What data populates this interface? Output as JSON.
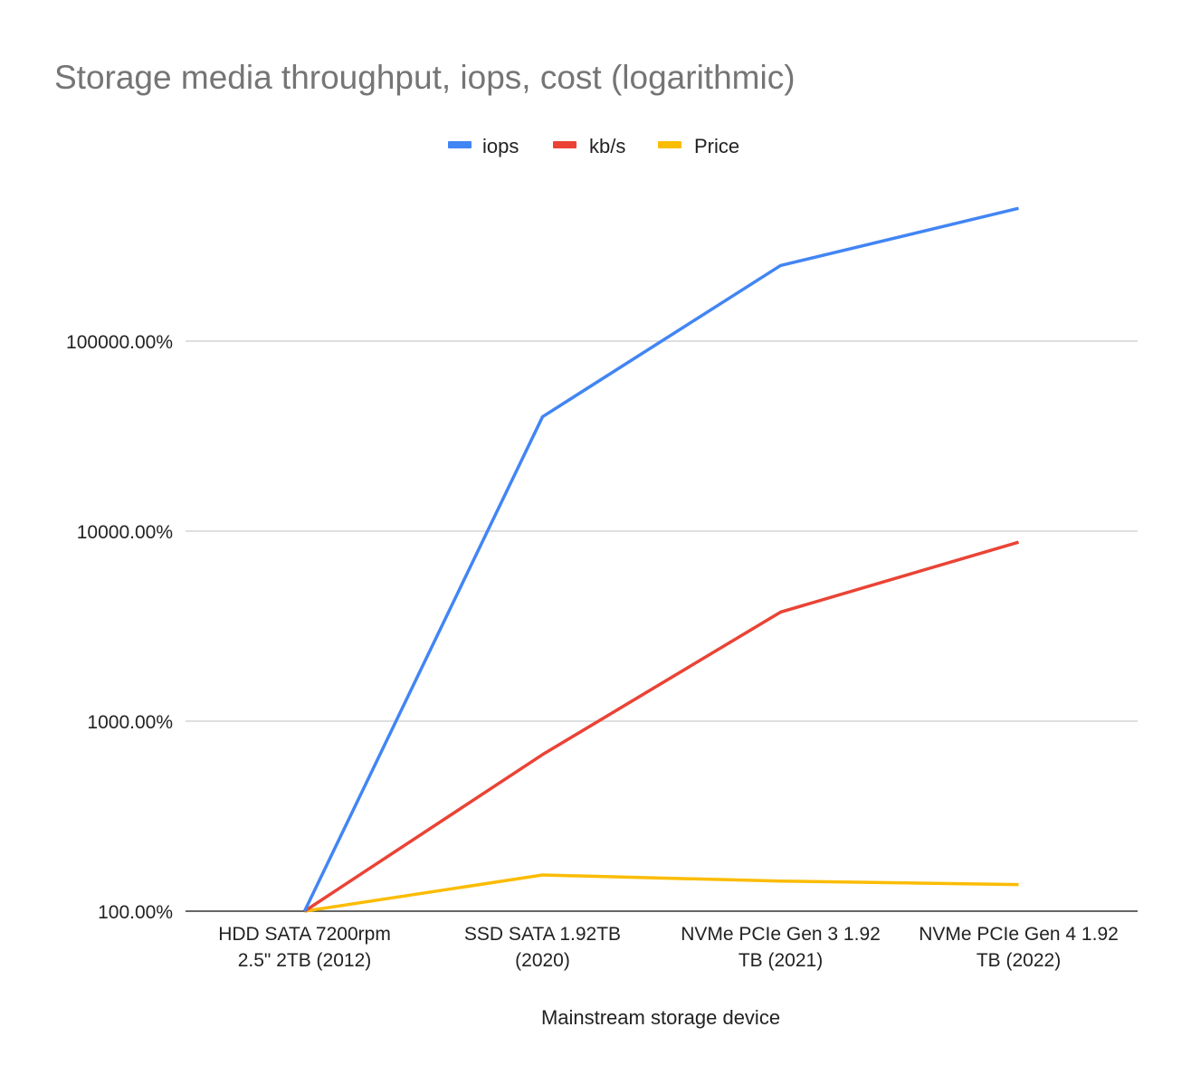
{
  "chart_data": {
    "type": "line",
    "title": "Storage media throughput, iops, cost (logarithmic)",
    "xlabel": "Mainstream storage device",
    "ylabel": "",
    "yscale": "log",
    "ylim": [
      100,
      700000
    ],
    "yticks": [
      100,
      1000,
      10000,
      100000
    ],
    "ytick_labels": [
      "100.00%",
      "1000.00%",
      "10000.00%",
      "100000.00%"
    ],
    "categories": [
      [
        "HDD SATA 7200rpm",
        "2.5\" 2TB (2012)"
      ],
      [
        "SSD SATA 1.92TB",
        "(2020)"
      ],
      [
        "NVMe PCIe Gen 3 1.92",
        "TB (2021)"
      ],
      [
        "NVMe PCIe Gen 4 1.92",
        "TB (2022)"
      ]
    ],
    "legend_position": "top-center",
    "grid": true,
    "series": [
      {
        "name": "iops",
        "color": "#4285f4",
        "values": [
          100,
          40000,
          250000,
          500000
        ]
      },
      {
        "name": "kb/s",
        "color": "#ea4335",
        "values": [
          100,
          667,
          3750,
          8750
        ]
      },
      {
        "name": "Price",
        "color": "#fbbc04",
        "values": [
          100,
          155,
          144,
          138
        ]
      }
    ]
  }
}
